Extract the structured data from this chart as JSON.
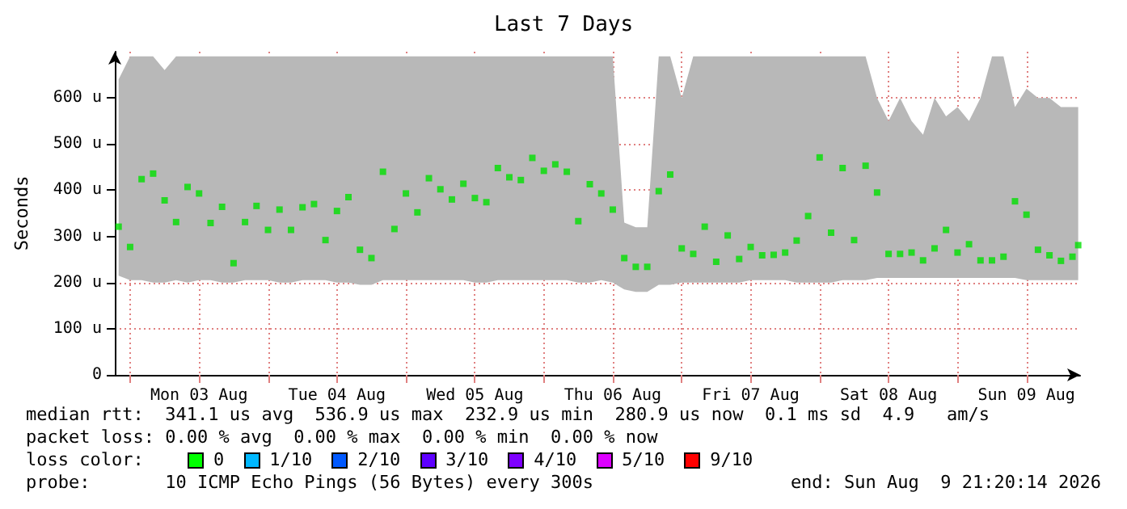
{
  "chart_data": {
    "type": "scatter",
    "title": "Last 7 Days",
    "ylabel": "Seconds",
    "marker": "square",
    "grid": true,
    "xlim": [
      "2026-08-02T21:20",
      "2026-08-09T21:20"
    ],
    "xticks": [
      {
        "value": "2026-08-03T00:00",
        "label": null
      },
      {
        "value": "2026-08-03T12:00",
        "label": "Mon 03 Aug"
      },
      {
        "value": "2026-08-04T00:00",
        "label": null
      },
      {
        "value": "2026-08-04T12:00",
        "label": "Tue 04 Aug"
      },
      {
        "value": "2026-08-05T00:00",
        "label": null
      },
      {
        "value": "2026-08-05T12:00",
        "label": "Wed 05 Aug"
      },
      {
        "value": "2026-08-06T00:00",
        "label": null
      },
      {
        "value": "2026-08-06T12:00",
        "label": "Thu 06 Aug"
      },
      {
        "value": "2026-08-07T00:00",
        "label": null
      },
      {
        "value": "2026-08-07T12:00",
        "label": "Fri 07 Aug"
      },
      {
        "value": "2026-08-08T00:00",
        "label": null
      },
      {
        "value": "2026-08-08T12:00",
        "label": "Sat 08 Aug"
      },
      {
        "value": "2026-08-09T00:00",
        "label": null
      },
      {
        "value": "2026-08-09T12:00",
        "label": "Sun 09 Aug"
      }
    ],
    "ylim": [
      0,
      700
    ],
    "yticks": [
      0,
      {
        "value": 100,
        "label": "100 u"
      },
      {
        "value": 200,
        "label": "200 u"
      },
      {
        "value": 300,
        "label": "300 u"
      },
      {
        "value": 400,
        "label": "400 u"
      },
      {
        "value": 500,
        "label": "500 u"
      },
      {
        "value": 600,
        "label": "600 u"
      }
    ],
    "x": [
      "2026-08-02T22:00",
      "2026-08-03T00:00",
      "2026-08-03T02:00",
      "2026-08-03T04:00",
      "2026-08-03T06:00",
      "2026-08-03T08:00",
      "2026-08-03T10:00",
      "2026-08-03T12:00",
      "2026-08-03T14:00",
      "2026-08-03T16:00",
      "2026-08-03T18:00",
      "2026-08-03T20:00",
      "2026-08-03T22:00",
      "2026-08-04T00:00",
      "2026-08-04T02:00",
      "2026-08-04T04:00",
      "2026-08-04T06:00",
      "2026-08-04T08:00",
      "2026-08-04T10:00",
      "2026-08-04T12:00",
      "2026-08-04T14:00",
      "2026-08-04T16:00",
      "2026-08-04T18:00",
      "2026-08-04T20:00",
      "2026-08-04T22:00",
      "2026-08-05T00:00",
      "2026-08-05T02:00",
      "2026-08-05T04:00",
      "2026-08-05T06:00",
      "2026-08-05T08:00",
      "2026-08-05T10:00",
      "2026-08-05T12:00",
      "2026-08-05T14:00",
      "2026-08-05T16:00",
      "2026-08-05T18:00",
      "2026-08-05T20:00",
      "2026-08-05T22:00",
      "2026-08-06T00:00",
      "2026-08-06T02:00",
      "2026-08-06T04:00",
      "2026-08-06T06:00",
      "2026-08-06T08:00",
      "2026-08-06T10:00",
      "2026-08-06T12:00",
      "2026-08-06T14:00",
      "2026-08-06T16:00",
      "2026-08-06T18:00",
      "2026-08-06T20:00",
      "2026-08-06T22:00",
      "2026-08-07T00:00",
      "2026-08-07T02:00",
      "2026-08-07T04:00",
      "2026-08-07T06:00",
      "2026-08-07T08:00",
      "2026-08-07T10:00",
      "2026-08-07T12:00",
      "2026-08-07T14:00",
      "2026-08-07T16:00",
      "2026-08-07T18:00",
      "2026-08-07T20:00",
      "2026-08-07T22:00",
      "2026-08-08T00:00",
      "2026-08-08T02:00",
      "2026-08-08T04:00",
      "2026-08-08T06:00",
      "2026-08-08T08:00",
      "2026-08-08T10:00",
      "2026-08-08T12:00",
      "2026-08-08T14:00",
      "2026-08-08T16:00",
      "2026-08-08T18:00",
      "2026-08-08T20:00",
      "2026-08-08T22:00",
      "2026-08-09T00:00",
      "2026-08-09T02:00",
      "2026-08-09T04:00",
      "2026-08-09T06:00",
      "2026-08-09T08:00",
      "2026-08-09T10:00",
      "2026-08-09T12:00",
      "2026-08-09T14:00",
      "2026-08-09T16:00",
      "2026-08-09T18:00",
      "2026-08-09T20:00",
      "2026-08-09T21:00"
    ],
    "series": [
      {
        "color": "#00e000",
        "values": [
          321,
          277,
          424,
          436,
          378,
          331,
          407,
          393,
          329,
          364,
          242,
          331,
          366,
          314,
          358,
          314,
          363,
          370,
          292,
          355,
          385,
          271,
          253,
          440,
          316,
          393,
          352,
          426,
          402,
          380,
          414,
          383,
          374,
          448,
          428,
          422,
          470,
          442,
          456,
          440,
          333,
          413,
          393,
          358,
          253,
          234,
          234,
          398,
          434,
          274,
          262,
          321,
          245,
          302,
          251,
          277,
          259,
          260,
          265,
          291,
          344,
          471,
          308,
          448,
          292,
          453,
          395,
          262,
          262,
          265,
          248,
          274,
          314,
          265,
          283,
          248,
          248,
          256,
          376,
          347,
          271,
          259,
          247,
          256,
          281
        ],
        "lower": [
          215,
          205,
          205,
          200,
          200,
          205,
          200,
          205,
          205,
          200,
          200,
          205,
          205,
          205,
          200,
          200,
          205,
          205,
          205,
          200,
          200,
          195,
          195,
          205,
          205,
          205,
          205,
          205,
          205,
          205,
          205,
          200,
          200,
          205,
          205,
          205,
          205,
          205,
          205,
          205,
          200,
          200,
          205,
          200,
          185,
          180,
          180,
          195,
          195,
          200,
          200,
          200,
          200,
          200,
          200,
          205,
          205,
          205,
          205,
          200,
          200,
          200,
          200,
          205,
          205,
          205,
          210,
          210,
          210,
          210,
          210,
          210,
          210,
          210,
          210,
          210,
          210,
          210,
          210,
          205,
          205,
          205,
          205,
          205,
          205
        ],
        "upper": [
          640,
          690,
          690,
          690,
          660,
          690,
          690,
          690,
          690,
          690,
          690,
          690,
          690,
          690,
          690,
          690,
          690,
          690,
          690,
          690,
          690,
          690,
          690,
          690,
          690,
          690,
          690,
          690,
          690,
          690,
          690,
          690,
          690,
          690,
          690,
          690,
          690,
          690,
          690,
          690,
          690,
          690,
          690,
          690,
          330,
          320,
          320,
          690,
          690,
          600,
          690,
          690,
          690,
          690,
          690,
          690,
          690,
          690,
          690,
          690,
          690,
          690,
          690,
          690,
          690,
          690,
          600,
          550,
          600,
          550,
          520,
          600,
          560,
          580,
          550,
          600,
          690,
          690,
          580,
          620,
          600,
          600,
          580,
          580,
          580
        ]
      }
    ],
    "annotations": [
      "median rtt:  341.1 us avg  536.9 us max  232.9 us min  280.9 us now  0.1 ms sd  4.9   am/s",
      "packet loss: 0.00 % avg  0.00 % max  0.00 % min  0.00 % now",
      "loss color:",
      "0",
      "1/10",
      "2/10",
      "3/10",
      "4/10",
      "5/10",
      "9/10",
      "probe:       10 ICMP Echo Pings (56 Bytes) every 300s",
      "end: Sun Aug  9 21:20:14 2026"
    ]
  }
}
